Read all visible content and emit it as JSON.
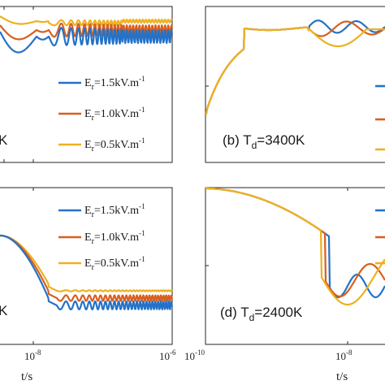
{
  "colors": {
    "blue": "#2472C8",
    "orange": "#D95F1E",
    "yellow": "#EDB120",
    "axis": "#262626"
  },
  "chart_data": [
    {
      "panel": "top-left",
      "type": "line",
      "annotation": "K",
      "x_log": true,
      "x_ticks": [],
      "legend": {
        "placement": "right",
        "entries": [
          {
            "sym": "E",
            "sub": "r",
            "text": "=1.5kV.m",
            "sup": "-1",
            "color_key": "blue"
          },
          {
            "sym": "E",
            "sub": "r",
            "text": "=1.0kV.m",
            "sup": "-1",
            "color_key": "orange"
          },
          {
            "sym": "E",
            "sub": "r",
            "text": "=0.5kV.m",
            "sup": "-1",
            "color_key": "yellow"
          }
        ]
      },
      "series": [
        {
          "color_key": "yellow",
          "steady": 0.855,
          "dip": 0.83,
          "amp": 0.012
        },
        {
          "color_key": "orange",
          "steady": 0.8,
          "dip": 0.72,
          "amp": 0.035
        },
        {
          "color_key": "blue",
          "steady": 0.76,
          "dip": 0.62,
          "amp": 0.06
        }
      ]
    },
    {
      "panel": "top-right",
      "type": "line",
      "annotation_prefix": "(b) T",
      "annotation_sub": "d",
      "annotation_suffix": "=3400K",
      "x_log": true,
      "x_ticks": [],
      "legend_colors": [
        "blue",
        "orange",
        "yellow"
      ]
    },
    {
      "panel": "bottom-left",
      "type": "line",
      "annotation": "K",
      "x_log": true,
      "xlabel": "t/s",
      "x_ticks": [
        {
          "base": "10",
          "exp": "-8"
        },
        {
          "base": "10",
          "exp": "-6"
        }
      ],
      "legend": {
        "placement": "right",
        "entries": [
          {
            "sym": "E",
            "sub": "r",
            "text": "=1.5kV.m",
            "sup": "-1",
            "color_key": "blue"
          },
          {
            "sym": "E",
            "sub": "r",
            "text": "=1.0kV.m",
            "sup": "-1",
            "color_key": "orange"
          },
          {
            "sym": "E",
            "sub": "r",
            "text": "=0.5kV.m",
            "sup": "-1",
            "color_key": "yellow"
          }
        ]
      }
    },
    {
      "panel": "bottom-right",
      "type": "line",
      "annotation_prefix": "(d) T",
      "annotation_sub": "d",
      "annotation_suffix": "=2400K",
      "x_log": true,
      "xlabel": "t/s",
      "x_ticks": [
        {
          "base": "10",
          "exp": "-10"
        },
        {
          "base": "10",
          "exp": "-8"
        }
      ],
      "legend_colors": [
        "blue",
        "orange",
        "yellow"
      ]
    }
  ]
}
